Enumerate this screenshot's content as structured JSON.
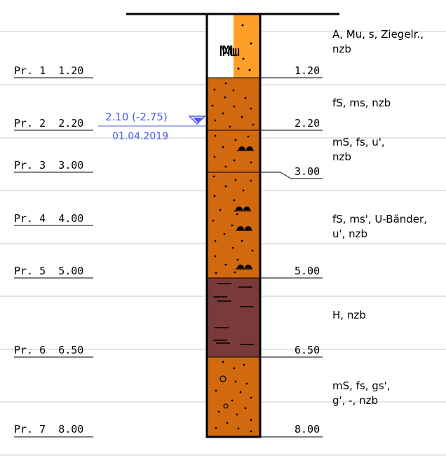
{
  "profile": {
    "colors": {
      "fill_fill": "#ffffff",
      "fill_sand": "#ff9f2a",
      "sand": "#d2690f",
      "peat": "#7b3a3a",
      "water_level": "#4f5be8",
      "line": "#000000",
      "grid": "#c8c8c8"
    },
    "layers": [
      {
        "key": "fill",
        "bottom": "1.20",
        "label": "Mu",
        "description": [
          "A, Mu, s, Ziegelr.,",
          "nzb"
        ]
      },
      {
        "key": "sand",
        "bottom": "2.20",
        "description": [
          "fS, ms, nzb"
        ]
      },
      {
        "key": "sand",
        "bottom": "3.00",
        "description": [
          "mS, fs, u',",
          "nzb"
        ]
      },
      {
        "key": "sand",
        "bottom": "5.00",
        "description": [
          "fS, ms', U-Bänder,",
          "u', nzb"
        ]
      },
      {
        "key": "peat",
        "bottom": "6.50",
        "description": [
          "H, nzb"
        ]
      },
      {
        "key": "sand",
        "bottom": "8.00",
        "description": [
          "mS, fs, gs',",
          "g', -, nzb"
        ]
      }
    ],
    "samples": [
      {
        "label": "Pr. 1  1.20"
      },
      {
        "label": "Pr. 2  2.20"
      },
      {
        "label": "Pr. 3  3.00"
      },
      {
        "label": "Pr. 4  4.00"
      },
      {
        "label": "Pr. 5  5.00"
      },
      {
        "label": "Pr. 6  6.50"
      },
      {
        "label": "Pr. 7  8.00"
      }
    ],
    "water_level": {
      "value": "2.10 (-2.75)",
      "date": "01.04.2019"
    }
  }
}
